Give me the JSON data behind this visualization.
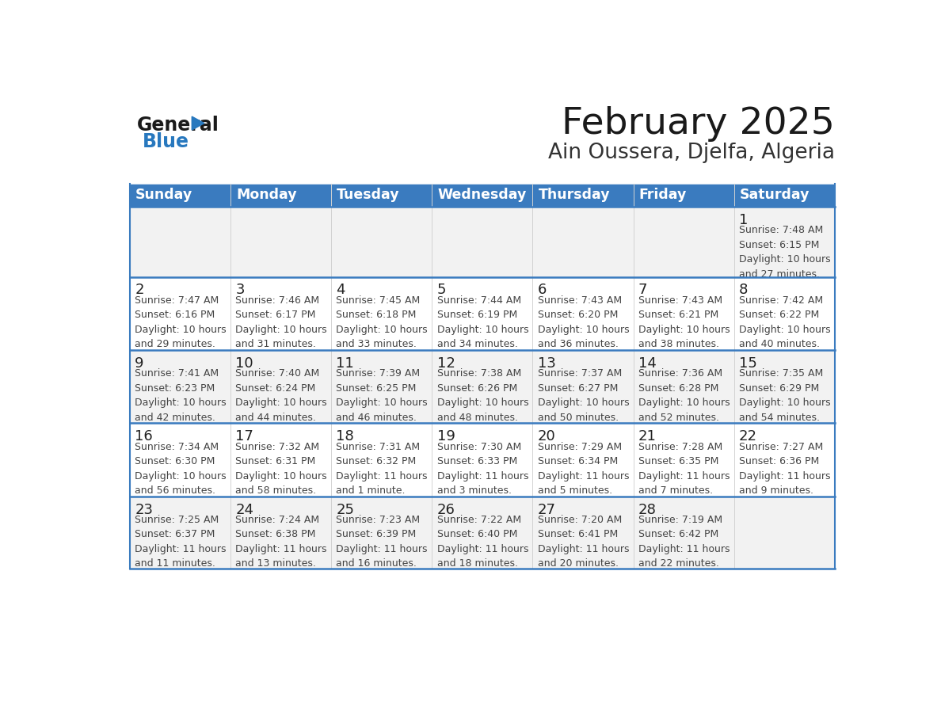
{
  "title": "February 2025",
  "subtitle": "Ain Oussera, Djelfa, Algeria",
  "days_of_week": [
    "Sunday",
    "Monday",
    "Tuesday",
    "Wednesday",
    "Thursday",
    "Friday",
    "Saturday"
  ],
  "header_bg": "#3a7bbf",
  "header_text": "#ffffff",
  "cell_bg_odd": "#f2f2f2",
  "cell_bg_even": "#ffffff",
  "border_color": "#3a7bbf",
  "text_color": "#444444",
  "day_number_color": "#222222",
  "logo_triangle_color": "#2878be",
  "calendar_data": [
    [
      null,
      null,
      null,
      null,
      null,
      null,
      {
        "day": 1,
        "sunrise": "7:48 AM",
        "sunset": "6:15 PM",
        "daylight": "10 hours\nand 27 minutes."
      }
    ],
    [
      {
        "day": 2,
        "sunrise": "7:47 AM",
        "sunset": "6:16 PM",
        "daylight": "10 hours\nand 29 minutes."
      },
      {
        "day": 3,
        "sunrise": "7:46 AM",
        "sunset": "6:17 PM",
        "daylight": "10 hours\nand 31 minutes."
      },
      {
        "day": 4,
        "sunrise": "7:45 AM",
        "sunset": "6:18 PM",
        "daylight": "10 hours\nand 33 minutes."
      },
      {
        "day": 5,
        "sunrise": "7:44 AM",
        "sunset": "6:19 PM",
        "daylight": "10 hours\nand 34 minutes."
      },
      {
        "day": 6,
        "sunrise": "7:43 AM",
        "sunset": "6:20 PM",
        "daylight": "10 hours\nand 36 minutes."
      },
      {
        "day": 7,
        "sunrise": "7:43 AM",
        "sunset": "6:21 PM",
        "daylight": "10 hours\nand 38 minutes."
      },
      {
        "day": 8,
        "sunrise": "7:42 AM",
        "sunset": "6:22 PM",
        "daylight": "10 hours\nand 40 minutes."
      }
    ],
    [
      {
        "day": 9,
        "sunrise": "7:41 AM",
        "sunset": "6:23 PM",
        "daylight": "10 hours\nand 42 minutes."
      },
      {
        "day": 10,
        "sunrise": "7:40 AM",
        "sunset": "6:24 PM",
        "daylight": "10 hours\nand 44 minutes."
      },
      {
        "day": 11,
        "sunrise": "7:39 AM",
        "sunset": "6:25 PM",
        "daylight": "10 hours\nand 46 minutes."
      },
      {
        "day": 12,
        "sunrise": "7:38 AM",
        "sunset": "6:26 PM",
        "daylight": "10 hours\nand 48 minutes."
      },
      {
        "day": 13,
        "sunrise": "7:37 AM",
        "sunset": "6:27 PM",
        "daylight": "10 hours\nand 50 minutes."
      },
      {
        "day": 14,
        "sunrise": "7:36 AM",
        "sunset": "6:28 PM",
        "daylight": "10 hours\nand 52 minutes."
      },
      {
        "day": 15,
        "sunrise": "7:35 AM",
        "sunset": "6:29 PM",
        "daylight": "10 hours\nand 54 minutes."
      }
    ],
    [
      {
        "day": 16,
        "sunrise": "7:34 AM",
        "sunset": "6:30 PM",
        "daylight": "10 hours\nand 56 minutes."
      },
      {
        "day": 17,
        "sunrise": "7:32 AM",
        "sunset": "6:31 PM",
        "daylight": "10 hours\nand 58 minutes."
      },
      {
        "day": 18,
        "sunrise": "7:31 AM",
        "sunset": "6:32 PM",
        "daylight": "11 hours\nand 1 minute."
      },
      {
        "day": 19,
        "sunrise": "7:30 AM",
        "sunset": "6:33 PM",
        "daylight": "11 hours\nand 3 minutes."
      },
      {
        "day": 20,
        "sunrise": "7:29 AM",
        "sunset": "6:34 PM",
        "daylight": "11 hours\nand 5 minutes."
      },
      {
        "day": 21,
        "sunrise": "7:28 AM",
        "sunset": "6:35 PM",
        "daylight": "11 hours\nand 7 minutes."
      },
      {
        "day": 22,
        "sunrise": "7:27 AM",
        "sunset": "6:36 PM",
        "daylight": "11 hours\nand 9 minutes."
      }
    ],
    [
      {
        "day": 23,
        "sunrise": "7:25 AM",
        "sunset": "6:37 PM",
        "daylight": "11 hours\nand 11 minutes."
      },
      {
        "day": 24,
        "sunrise": "7:24 AM",
        "sunset": "6:38 PM",
        "daylight": "11 hours\nand 13 minutes."
      },
      {
        "day": 25,
        "sunrise": "7:23 AM",
        "sunset": "6:39 PM",
        "daylight": "11 hours\nand 16 minutes."
      },
      {
        "day": 26,
        "sunrise": "7:22 AM",
        "sunset": "6:40 PM",
        "daylight": "11 hours\nand 18 minutes."
      },
      {
        "day": 27,
        "sunrise": "7:20 AM",
        "sunset": "6:41 PM",
        "daylight": "11 hours\nand 20 minutes."
      },
      {
        "day": 28,
        "sunrise": "7:19 AM",
        "sunset": "6:42 PM",
        "daylight": "11 hours\nand 22 minutes."
      },
      null
    ]
  ]
}
